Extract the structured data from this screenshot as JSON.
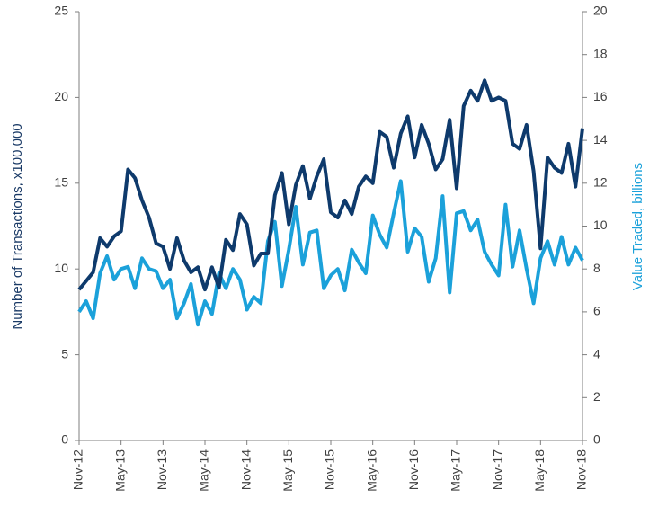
{
  "chart_data": {
    "type": "line",
    "y_label": "Number of Transactions, x100,000",
    "y2_label": "Value Traded, billions",
    "categories": [
      "Nov-12",
      null,
      null,
      null,
      null,
      null,
      "May-13",
      null,
      null,
      null,
      null,
      null,
      "Nov-13",
      null,
      null,
      null,
      null,
      null,
      "May-14",
      null,
      null,
      null,
      null,
      null,
      "Nov-14",
      null,
      null,
      null,
      null,
      null,
      "May-15",
      null,
      null,
      null,
      null,
      null,
      "Nov-15",
      null,
      null,
      null,
      null,
      null,
      "May-16",
      null,
      null,
      null,
      null,
      null,
      "Nov-16",
      null,
      null,
      null,
      null,
      null,
      "May-17",
      null,
      null,
      null,
      null,
      null,
      "Nov-17",
      null,
      null,
      null,
      null,
      null,
      "May-18",
      null,
      null,
      null,
      null,
      null,
      "Nov-18"
    ],
    "ylim": [
      0,
      25
    ],
    "yticks": [
      0,
      5,
      10,
      15,
      20,
      25
    ],
    "y2lim": [
      0,
      20
    ],
    "y2ticks": [
      0,
      2,
      4,
      6,
      8,
      10,
      12,
      14,
      16,
      18,
      20
    ],
    "series": [
      {
        "color": "#0e3a6c",
        "values": [
          8.8,
          9.3,
          9.8,
          11.8,
          11.3,
          11.9,
          12.2,
          15.8,
          15.3,
          14.0,
          13.0,
          11.5,
          11.3,
          10.0,
          11.8,
          10.5,
          9.8,
          10.1,
          8.8,
          10.1,
          8.9,
          11.7,
          11.1,
          13.2,
          12.6,
          10.2,
          10.9,
          10.9,
          14.3,
          15.6,
          12.6,
          14.9,
          16.0,
          14.1,
          15.4,
          16.4,
          13.3,
          13.0,
          14.0,
          13.2,
          14.8,
          15.4,
          15.0,
          18.0,
          17.7,
          15.9,
          17.9,
          18.9,
          16.5,
          18.4,
          17.3,
          15.8,
          16.4,
          18.7,
          14.7,
          19.5,
          20.4,
          19.8,
          21.0,
          19.8,
          20.0,
          19.8,
          17.3,
          17.0,
          18.4,
          15.7,
          11.2,
          16.5,
          15.9,
          15.6,
          17.3,
          14.8,
          18.2
        ]
      },
      {
        "color": "#1ba1da",
        "axis": "y2",
        "values": [
          6.0,
          6.5,
          5.7,
          7.8,
          8.6,
          7.5,
          8.0,
          8.1,
          7.1,
          8.5,
          8.0,
          7.9,
          7.1,
          7.5,
          5.7,
          6.4,
          7.3,
          5.4,
          6.5,
          5.9,
          7.8,
          7.1,
          8.0,
          7.5,
          6.1,
          6.7,
          6.4,
          9.3,
          10.2,
          7.2,
          8.9,
          10.9,
          8.2,
          9.7,
          9.8,
          7.1,
          7.7,
          8.0,
          7.0,
          8.9,
          8.3,
          7.8,
          10.5,
          9.6,
          9.0,
          10.6,
          12.1,
          8.8,
          9.9,
          9.5,
          7.4,
          8.5,
          11.4,
          6.9,
          10.6,
          10.7,
          9.8,
          10.3,
          8.8,
          8.2,
          7.7,
          11.0,
          8.1,
          9.8,
          8.0,
          6.4,
          8.5,
          9.3,
          8.2,
          9.5,
          8.2,
          9.0,
          8.4
        ]
      }
    ]
  }
}
